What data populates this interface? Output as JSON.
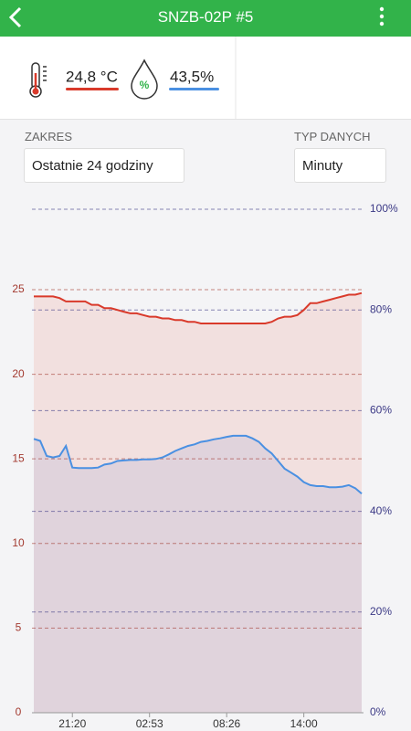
{
  "header": {
    "title": "SNZB-02P #5"
  },
  "readings": {
    "temperature": "24,8 °C",
    "humidity_icon": "%",
    "humidity": "43,5%"
  },
  "controls": {
    "range_label": "ZAKRES",
    "range_value": "Ostatnie 24 godziny",
    "type_label": "TYP DANYCH",
    "type_value": "Minuty"
  },
  "chart_data": {
    "type": "line",
    "x": [
      null,
      null,
      null,
      null,
      null,
      null,
      "21:20",
      null,
      null,
      null,
      null,
      null,
      null,
      null,
      null,
      null,
      null,
      null,
      "02:53",
      null,
      null,
      null,
      null,
      null,
      null,
      null,
      null,
      null,
      null,
      null,
      "08:26",
      null,
      null,
      null,
      null,
      null,
      null,
      null,
      null,
      null,
      null,
      null,
      "14:00",
      null,
      null,
      null,
      null,
      null,
      null,
      null,
      null,
      null
    ],
    "series": [
      {
        "color": "#d93a2b",
        "fill": "rgba(235,90,70,0.13)",
        "values": [
          24.6,
          24.6,
          24.6,
          24.6,
          24.5,
          24.3,
          24.3,
          24.3,
          24.3,
          24.1,
          24.1,
          23.9,
          23.9,
          23.8,
          23.7,
          23.6,
          23.6,
          23.5,
          23.4,
          23.4,
          23.3,
          23.3,
          23.2,
          23.2,
          23.1,
          23.1,
          23.0,
          23.0,
          23.0,
          23.0,
          23.0,
          23.0,
          23.0,
          23.0,
          23.0,
          23.0,
          23.0,
          23.1,
          23.3,
          23.4,
          23.4,
          23.5,
          23.8,
          24.2,
          24.2,
          24.3,
          24.4,
          24.5,
          24.6,
          24.7,
          24.7,
          24.8
        ]
      },
      {
        "color": "#4a90e2",
        "fill": "rgba(110,120,200,0.13)",
        "axis": "y2",
        "values": [
          54.4,
          54.0,
          51.0,
          50.7,
          51.0,
          53.0,
          48.7,
          48.6,
          48.6,
          48.6,
          48.7,
          49.3,
          49.5,
          50.0,
          50.1,
          50.2,
          50.2,
          50.3,
          50.3,
          50.4,
          50.7,
          51.3,
          52.0,
          52.5,
          53.0,
          53.3,
          53.8,
          54.0,
          54.3,
          54.5,
          54.8,
          55.0,
          55.0,
          55.0,
          54.5,
          53.8,
          52.5,
          51.5,
          50.0,
          48.5,
          47.7,
          46.9,
          45.8,
          45.2,
          45.0,
          45.0,
          44.8,
          44.8,
          44.9,
          45.2,
          44.6,
          43.5
        ]
      }
    ],
    "ylim": [
      0,
      29.75
    ],
    "yticks": [
      0,
      5,
      10,
      15,
      20,
      25
    ],
    "ycolor": "#a33a30",
    "y2lim": [
      0,
      100
    ],
    "y2ticks": [
      {
        "value": 0,
        "label": "0%"
      },
      {
        "value": 20,
        "label": "20%"
      },
      {
        "value": 40,
        "label": "40%"
      },
      {
        "value": 60,
        "label": "60%"
      },
      {
        "value": 80,
        "label": "80%"
      },
      {
        "value": 100,
        "label": "100%"
      }
    ],
    "y2color": "#3c3a86",
    "grid": true
  }
}
